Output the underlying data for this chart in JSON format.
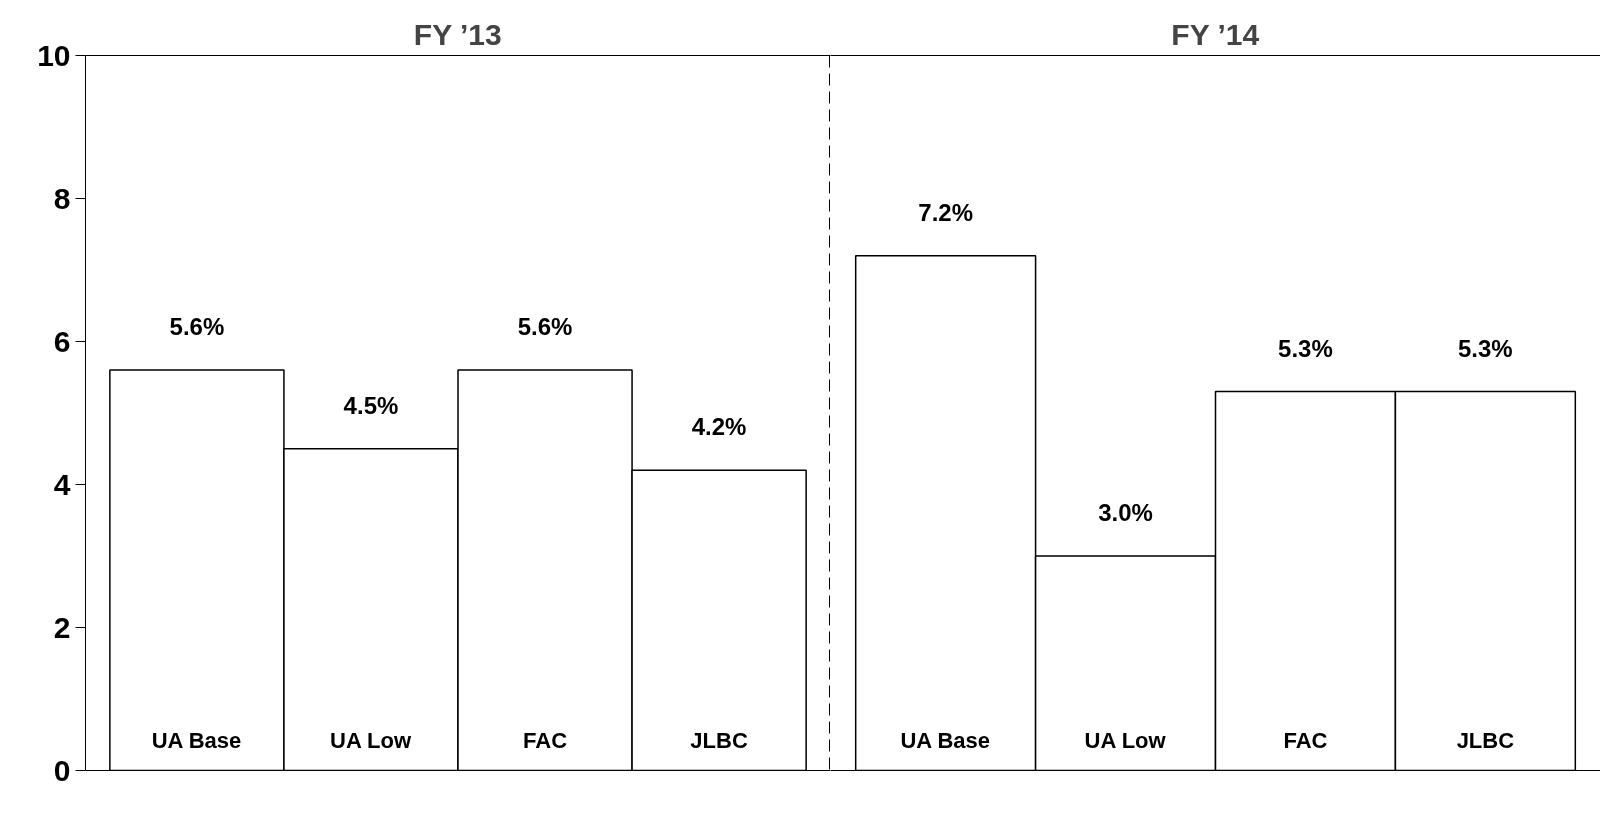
{
  "chart_data": [
    {
      "type": "bar",
      "title": "FY ’13",
      "categories": [
        "UA Base",
        "UA Low",
        "FAC",
        "JLBC"
      ],
      "values": [
        5.6,
        4.5,
        5.6,
        4.2
      ],
      "color": "#ffffff",
      "value_labels": [
        "5.6%",
        "4.5%",
        "5.6%",
        "4.2%"
      ],
      "ylim": [
        0,
        10
      ],
      "yticks": [
        0,
        2,
        4,
        6,
        8,
        10
      ],
      "grid": false
    },
    {
      "type": "bar",
      "title": "FY ’14",
      "categories": [
        "UA Base",
        "UA Low",
        "FAC",
        "JLBC"
      ],
      "values": [
        7.2,
        3.0,
        5.3,
        5.3
      ],
      "color": "#ffffff",
      "value_labels": [
        "7.2%",
        "3.0%",
        "5.3%",
        "5.3%"
      ],
      "ylim": [
        0,
        10
      ],
      "yticks": [
        0,
        2,
        4,
        6,
        8,
        10
      ],
      "grid": false,
      "tick_labels": "x"
    }
  ]
}
